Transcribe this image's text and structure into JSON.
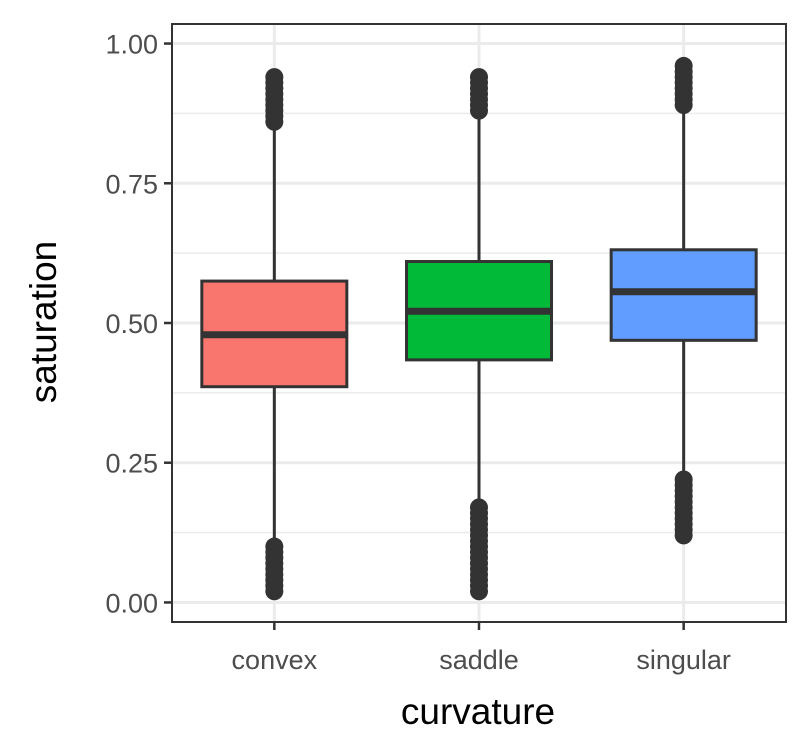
{
  "chart_data": {
    "type": "box",
    "x_label": "curvature",
    "y_label": "saturation",
    "categories": [
      "convex",
      "saddle",
      "singular"
    ],
    "ylim": [
      -0.035,
      1.035
    ],
    "yticks": [
      {
        "value": 0,
        "label": "0.00"
      },
      {
        "value": 0.25,
        "label": "0.25"
      },
      {
        "value": 0.5,
        "label": "0.50"
      },
      {
        "value": 0.75,
        "label": "0.75"
      },
      {
        "value": 1,
        "label": "1.00"
      }
    ],
    "y_minor_grid": [
      0.125,
      0.375,
      0.625,
      0.875
    ],
    "grid": true,
    "boxes": [
      {
        "color": "#f8766d",
        "whislo": 0.11,
        "q1": 0.386,
        "med": 0.479,
        "q3": 0.575,
        "whishi": 0.855,
        "outliers": [
          0.02,
          0.03,
          0.04,
          0.05,
          0.06,
          0.07,
          0.08,
          0.09,
          0.1,
          0.86,
          0.87,
          0.88,
          0.89,
          0.9,
          0.91,
          0.92,
          0.93,
          0.94
        ]
      },
      {
        "color": "#00ba38",
        "whislo": 0.175,
        "q1": 0.434,
        "med": 0.521,
        "q3": 0.61,
        "whishi": 0.875,
        "outliers": [
          0.02,
          0.03,
          0.04,
          0.05,
          0.06,
          0.07,
          0.08,
          0.09,
          0.1,
          0.11,
          0.12,
          0.13,
          0.14,
          0.15,
          0.16,
          0.17,
          0.88,
          0.89,
          0.9,
          0.91,
          0.92,
          0.93,
          0.94
        ]
      },
      {
        "color": "#619cff",
        "whislo": 0.225,
        "q1": 0.469,
        "med": 0.556,
        "q3": 0.631,
        "whishi": 0.88,
        "outliers": [
          0.12,
          0.13,
          0.14,
          0.15,
          0.16,
          0.17,
          0.18,
          0.19,
          0.2,
          0.21,
          0.22,
          0.89,
          0.9,
          0.91,
          0.92,
          0.93,
          0.94,
          0.95,
          0.96
        ]
      }
    ]
  }
}
